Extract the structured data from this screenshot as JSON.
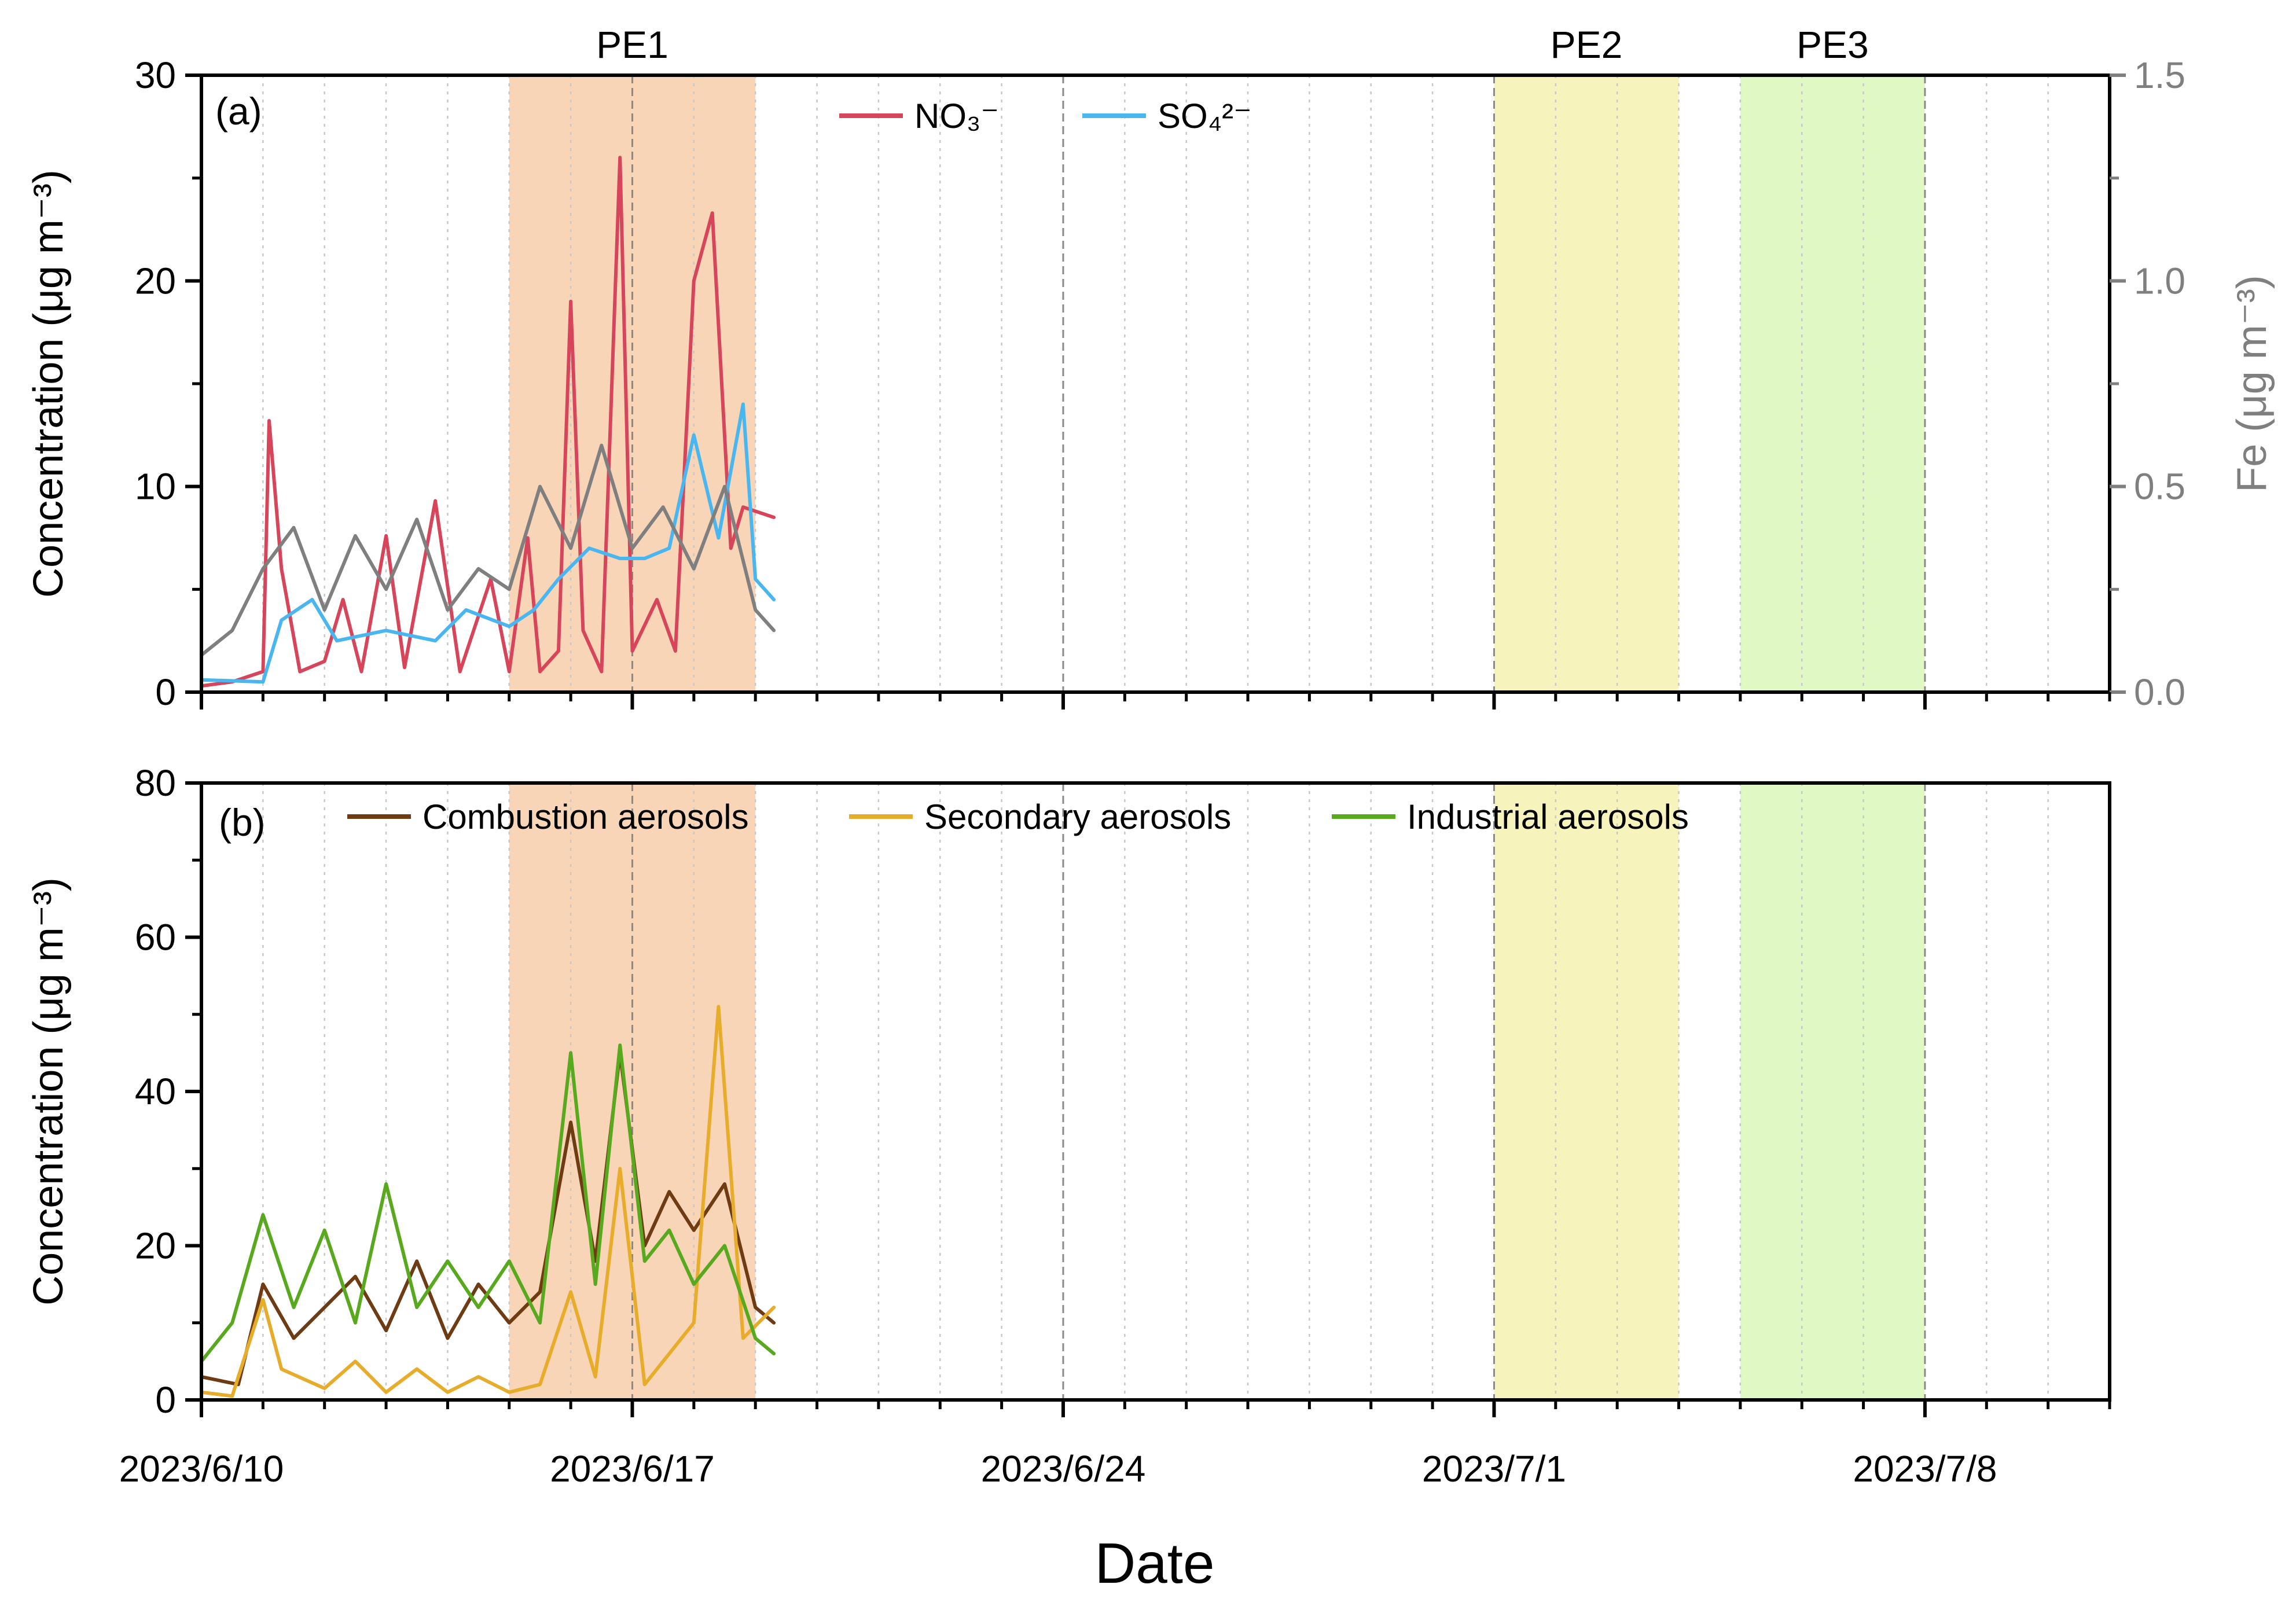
{
  "chart_data": {
    "type": "line",
    "xlabel": "Date",
    "x_range": [
      "2023/6/10",
      "2023/7/11"
    ],
    "x_ticks": [
      "2023/6/10",
      "2023/6/17",
      "2023/6/24",
      "2023/7/1",
      "2023/7/8"
    ],
    "periods": [
      {
        "label": "PE1",
        "start": "2023/6/15",
        "end": "2023/6/19",
        "color": "#f9d5b8"
      },
      {
        "label": "PE2",
        "start": "2023/7/1",
        "end": "2023/7/4",
        "color": "#f6f3bd"
      },
      {
        "label": "PE3",
        "start": "2023/7/5",
        "end": "2023/7/8",
        "color": "#e0f8c4"
      }
    ],
    "panels": [
      {
        "id": "a",
        "label": "(a)",
        "ylabel": "Concentration (μg m⁻³)",
        "ylim": [
          0,
          30
        ],
        "yticks": [
          0,
          10,
          20,
          30
        ],
        "y2label": "Fe (μg m⁻³)",
        "y2lim": [
          0,
          1.5
        ],
        "y2ticks": [
          "0.0",
          "0.5",
          "1.0",
          "1.5"
        ],
        "legend_position": "top-center",
        "series": [
          {
            "name": "NO₃⁻",
            "color": "#d7455a",
            "axis": "left",
            "points": [
              [
                "2023/6/10",
                0.3
              ],
              [
                "2023/6/10.5",
                0.5
              ],
              [
                "2023/6/11",
                1.0
              ],
              [
                "2023/6/11.1",
                13.2
              ],
              [
                "2023/6/11.3",
                6.0
              ],
              [
                "2023/6/11.6",
                1.0
              ],
              [
                "2023/6/12",
                1.5
              ],
              [
                "2023/6/12.3",
                4.5
              ],
              [
                "2023/6/12.6",
                1.0
              ],
              [
                "2023/6/13",
                7.6
              ],
              [
                "2023/6/13.3",
                1.2
              ],
              [
                "2023/6/13.8",
                9.3
              ],
              [
                "2023/6/14.2",
                1.0
              ],
              [
                "2023/6/14.7",
                5.5
              ],
              [
                "2023/6/15",
                1.0
              ],
              [
                "2023/6/15.3",
                7.5
              ],
              [
                "2023/6/15.5",
                1.0
              ],
              [
                "2023/6/15.8",
                2.0
              ],
              [
                "2023/6/16.0",
                19.0
              ],
              [
                "2023/6/16.2",
                3.0
              ],
              [
                "2023/6/16.5",
                1.0
              ],
              [
                "2023/6/16.8",
                26.0
              ],
              [
                "2023/6/17.0",
                2.0
              ],
              [
                "2023/6/17.4",
                4.5
              ],
              [
                "2023/6/17.7",
                2.0
              ],
              [
                "2023/6/18.0",
                20.0
              ],
              [
                "2023/6/18.3",
                23.3
              ],
              [
                "2023/6/18.6",
                7.0
              ],
              [
                "2023/6/18.8",
                9.0
              ],
              [
                "2023/6/19.3",
                8.5
              ]
            ]
          },
          {
            "name": "SO₄²⁻",
            "color": "#4ab6f0",
            "axis": "left",
            "points": [
              [
                "2023/6/10",
                0.6
              ],
              [
                "2023/6/11",
                0.5
              ],
              [
                "2023/6/11.3",
                3.5
              ],
              [
                "2023/6/11.8",
                4.5
              ],
              [
                "2023/6/12.2",
                2.5
              ],
              [
                "2023/6/13",
                3.0
              ],
              [
                "2023/6/13.8",
                2.5
              ],
              [
                "2023/6/14.3",
                4.0
              ],
              [
                "2023/6/15",
                3.2
              ],
              [
                "2023/6/15.4",
                4.0
              ],
              [
                "2023/6/15.8",
                5.5
              ],
              [
                "2023/6/16.3",
                7.0
              ],
              [
                "2023/6/16.8",
                6.5
              ],
              [
                "2023/6/17.2",
                6.5
              ],
              [
                "2023/6/17.6",
                7.0
              ],
              [
                "2023/6/18.0",
                12.5
              ],
              [
                "2023/6/18.4",
                7.5
              ],
              [
                "2023/6/18.8",
                14.0
              ],
              [
                "2023/6/19.0",
                5.5
              ],
              [
                "2023/6/19.3",
                4.5
              ]
            ]
          },
          {
            "name": "Fe",
            "color": "#7f7f7f",
            "axis": "right",
            "points": [
              [
                "2023/6/10",
                0.09
              ],
              [
                "2023/6/10.5",
                0.15
              ],
              [
                "2023/6/11",
                0.3
              ],
              [
                "2023/6/11.5",
                0.4
              ],
              [
                "2023/6/12",
                0.2
              ],
              [
                "2023/6/12.5",
                0.38
              ],
              [
                "2023/6/13",
                0.25
              ],
              [
                "2023/6/13.5",
                0.42
              ],
              [
                "2023/6/14",
                0.2
              ],
              [
                "2023/6/14.5",
                0.3
              ],
              [
                "2023/6/15",
                0.25
              ],
              [
                "2023/6/15.5",
                0.5
              ],
              [
                "2023/6/16",
                0.35
              ],
              [
                "2023/6/16.5",
                0.6
              ],
              [
                "2023/6/17",
                0.35
              ],
              [
                "2023/6/17.5",
                0.45
              ],
              [
                "2023/6/18",
                0.3
              ],
              [
                "2023/6/18.5",
                0.5
              ],
              [
                "2023/6/19",
                0.2
              ],
              [
                "2023/6/19.3",
                0.15
              ]
            ]
          }
        ]
      },
      {
        "id": "b",
        "label": "(b)",
        "ylabel": "Concentration (μg m⁻³)",
        "ylim": [
          0,
          80
        ],
        "yticks": [
          0,
          20,
          40,
          60,
          80
        ],
        "legend_position": "top-center",
        "series": [
          {
            "name": "Combustion aerosols",
            "color": "#6e3b12",
            "axis": "left",
            "points": [
              [
                "2023/6/10",
                3.0
              ],
              [
                "2023/6/10.6",
                2.0
              ],
              [
                "2023/6/11",
                15.0
              ],
              [
                "2023/6/11.5",
                8.0
              ],
              [
                "2023/6/12",
                12.0
              ],
              [
                "2023/6/12.5",
                16.0
              ],
              [
                "2023/6/13",
                9.0
              ],
              [
                "2023/6/13.5",
                18.0
              ],
              [
                "2023/6/14",
                8.0
              ],
              [
                "2023/6/14.5",
                15.0
              ],
              [
                "2023/6/15",
                10.0
              ],
              [
                "2023/6/15.5",
                14.0
              ],
              [
                "2023/6/16",
                36.0
              ],
              [
                "2023/6/16.4",
                18.0
              ],
              [
                "2023/6/16.8",
                45.0
              ],
              [
                "2023/6/17.2",
                20.0
              ],
              [
                "2023/6/17.6",
                27.0
              ],
              [
                "2023/6/18.0",
                22.0
              ],
              [
                "2023/6/18.5",
                28.0
              ],
              [
                "2023/6/19",
                12.0
              ],
              [
                "2023/6/19.3",
                10.0
              ]
            ]
          },
          {
            "name": "Secondary aerosols",
            "color": "#e8ac2b",
            "axis": "left",
            "points": [
              [
                "2023/6/10",
                1.0
              ],
              [
                "2023/6/10.5",
                0.5
              ],
              [
                "2023/6/11",
                13.0
              ],
              [
                "2023/6/11.3",
                4.0
              ],
              [
                "2023/6/12",
                1.5
              ],
              [
                "2023/6/12.5",
                5.0
              ],
              [
                "2023/6/13",
                1.0
              ],
              [
                "2023/6/13.5",
                4.0
              ],
              [
                "2023/6/14",
                1.0
              ],
              [
                "2023/6/14.5",
                3.0
              ],
              [
                "2023/6/15",
                1.0
              ],
              [
                "2023/6/15.5",
                2.0
              ],
              [
                "2023/6/16",
                14.0
              ],
              [
                "2023/6/16.4",
                3.0
              ],
              [
                "2023/6/16.8",
                30.0
              ],
              [
                "2023/6/17.2",
                2.0
              ],
              [
                "2023/6/17.6",
                6.0
              ],
              [
                "2023/6/18",
                10.0
              ],
              [
                "2023/6/18.4",
                51.0
              ],
              [
                "2023/6/18.8",
                8.0
              ],
              [
                "2023/6/19.3",
                12.0
              ]
            ]
          },
          {
            "name": "Industrial aerosols",
            "color": "#58a91e",
            "axis": "left",
            "points": [
              [
                "2023/6/10",
                5.0
              ],
              [
                "2023/6/10.5",
                10.0
              ],
              [
                "2023/6/11",
                24.0
              ],
              [
                "2023/6/11.5",
                12.0
              ],
              [
                "2023/6/12",
                22.0
              ],
              [
                "2023/6/12.5",
                10.0
              ],
              [
                "2023/6/13",
                28.0
              ],
              [
                "2023/6/13.5",
                12.0
              ],
              [
                "2023/6/14",
                18.0
              ],
              [
                "2023/6/14.5",
                12.0
              ],
              [
                "2023/6/15",
                18.0
              ],
              [
                "2023/6/15.5",
                10.0
              ],
              [
                "2023/6/16",
                45.0
              ],
              [
                "2023/6/16.4",
                15.0
              ],
              [
                "2023/6/16.8",
                46.0
              ],
              [
                "2023/6/17.2",
                18.0
              ],
              [
                "2023/6/17.6",
                22.0
              ],
              [
                "2023/6/18",
                15.0
              ],
              [
                "2023/6/18.5",
                20.0
              ],
              [
                "2023/6/19",
                8.0
              ],
              [
                "2023/6/19.3",
                6.0
              ]
            ]
          }
        ]
      }
    ]
  }
}
